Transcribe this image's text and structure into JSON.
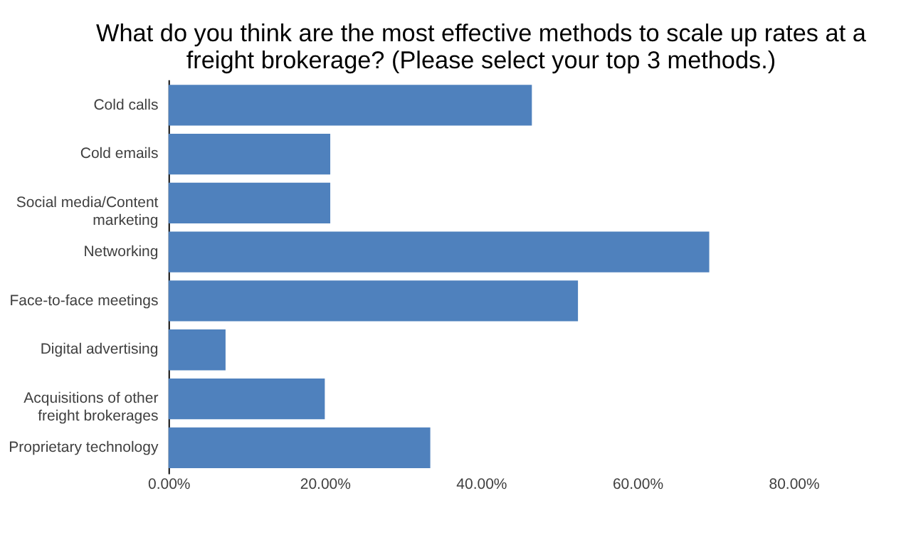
{
  "chart_data": {
    "type": "bar",
    "orientation": "horizontal",
    "title": "What do you think are the most effective methods to scale up rates at a\nfreight brokerage? (Please select your top 3 methods.)",
    "categories": [
      "Cold calls",
      "Cold emails",
      "Social media/Content\nmarketing",
      "Networking",
      "Face-to-face meetings",
      "Digital advertising",
      "Acquisitions of other\nfreight brokerages",
      "Proprietary technology"
    ],
    "values": [
      46.5,
      20.7,
      20.7,
      69.2,
      52.4,
      7.3,
      20.0,
      33.5
    ],
    "color": "#4f81bd",
    "xlim": [
      0,
      80
    ],
    "xticks": [
      {
        "value": 0,
        "label": "0.00%"
      },
      {
        "value": 20,
        "label": "20.00%"
      },
      {
        "value": 40,
        "label": "40.00%"
      },
      {
        "value": 60,
        "label": "60.00%"
      },
      {
        "value": 80,
        "label": "80.00%"
      }
    ],
    "grid": false
  }
}
